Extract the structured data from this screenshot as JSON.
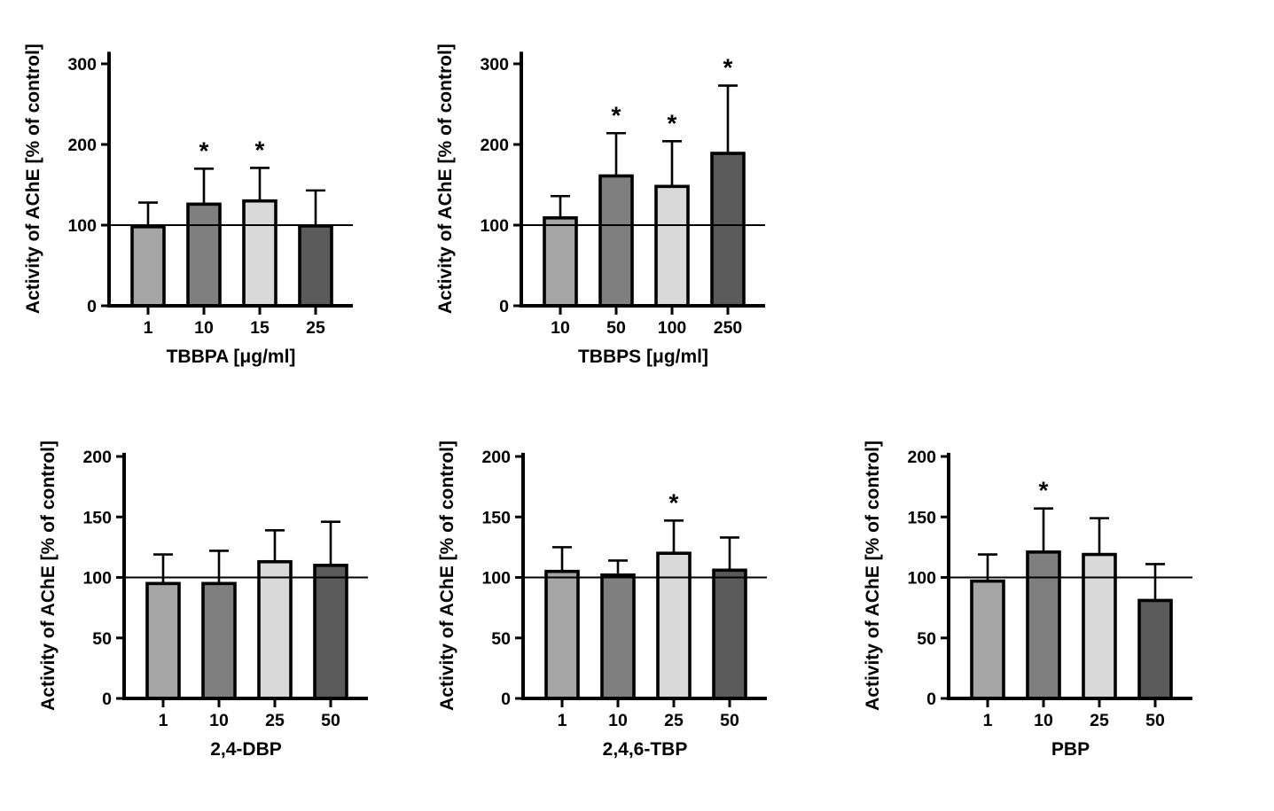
{
  "figure": {
    "background_color": "#ffffff",
    "axis_color": "#000000",
    "bar_border_color": "#000000",
    "bar_fill_colors": [
      "#a5a5a5",
      "#7f7f7f",
      "#d9d9d9",
      "#5a5a5a"
    ],
    "significance_marker": "*",
    "ylabel": "Activity of AChE [% of control]"
  },
  "chart_data": [
    {
      "id": "tbbpa",
      "type": "bar",
      "title": "",
      "xlabel": "TBBPA [μg/ml]",
      "ylabel": "Activity of AChE [% of control]",
      "categories": [
        "1",
        "10",
        "15",
        "25"
      ],
      "values": [
        98,
        126,
        130,
        99
      ],
      "error_up": [
        30,
        44,
        41,
        44
      ],
      "significant": [
        false,
        true,
        true,
        false
      ],
      "yticks": [
        0,
        100,
        200,
        300
      ],
      "ylim": [
        0,
        315
      ],
      "reference_line_y": 100,
      "grid": false,
      "legend": null
    },
    {
      "id": "tbbps",
      "type": "bar",
      "title": "",
      "xlabel": "TBBPS [μg/ml]",
      "ylabel": "Activity of AChE [% of control]",
      "categories": [
        "10",
        "50",
        "100",
        "250"
      ],
      "values": [
        109,
        161,
        148,
        189
      ],
      "error_up": [
        27,
        53,
        56,
        84
      ],
      "significant": [
        false,
        true,
        true,
        true
      ],
      "yticks": [
        0,
        100,
        200,
        300
      ],
      "ylim": [
        0,
        315
      ],
      "reference_line_y": 100,
      "grid": false,
      "legend": null
    },
    {
      "id": "dbp-2-4",
      "type": "bar",
      "title": "",
      "xlabel": "2,4-DBP",
      "ylabel": "Activity of AChE [% of control]",
      "categories": [
        "1",
        "10",
        "25",
        "50"
      ],
      "values": [
        95,
        95,
        113,
        110
      ],
      "error_up": [
        24,
        27,
        26,
        36
      ],
      "significant": [
        false,
        false,
        false,
        false
      ],
      "yticks": [
        0,
        50,
        100,
        150,
        200
      ],
      "ylim": [
        0,
        203
      ],
      "reference_line_y": 100,
      "grid": false,
      "legend": null
    },
    {
      "id": "tbp-2-4-6",
      "type": "bar",
      "title": "",
      "xlabel": "2,4,6-TBP",
      "ylabel": "Activity of AChE [% of control]",
      "categories": [
        "1",
        "10",
        "25",
        "50"
      ],
      "values": [
        105,
        102,
        120,
        106
      ],
      "error_up": [
        20,
        12,
        27,
        27
      ],
      "significant": [
        false,
        false,
        true,
        false
      ],
      "yticks": [
        0,
        50,
        100,
        150,
        200
      ],
      "ylim": [
        0,
        203
      ],
      "reference_line_y": 100,
      "grid": false,
      "legend": null
    },
    {
      "id": "pbp",
      "type": "bar",
      "title": "",
      "xlabel": "PBP",
      "ylabel": "Activity of AChE [% of control]",
      "categories": [
        "1",
        "10",
        "25",
        "50"
      ],
      "values": [
        97,
        121,
        119,
        81
      ],
      "error_up": [
        22,
        36,
        30,
        30
      ],
      "significant": [
        false,
        true,
        false,
        false
      ],
      "yticks": [
        0,
        50,
        100,
        150,
        200
      ],
      "ylim": [
        0,
        203
      ],
      "reference_line_y": 100,
      "grid": false,
      "legend": null
    }
  ]
}
